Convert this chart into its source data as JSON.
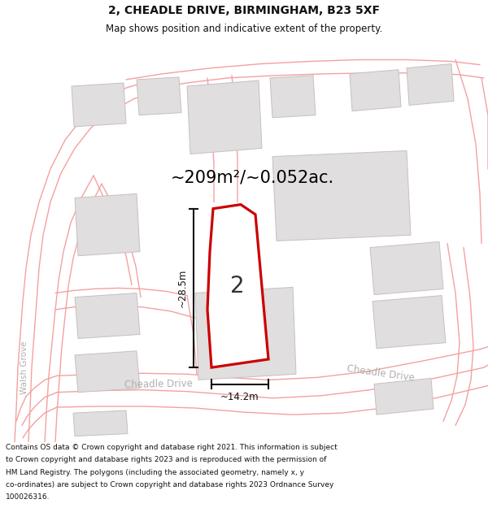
{
  "title": "2, CHEADLE DRIVE, BIRMINGHAM, B23 5XF",
  "subtitle": "Map shows position and indicative extent of the property.",
  "area_text": "~209m²/~0.052ac.",
  "number_label": "2",
  "dim_height": "~28.5m",
  "dim_width": "~14.2m",
  "street_label_bottom": "Cheadle Drive",
  "street_label_right": "Cheadle Drive",
  "street_label_left": "Walsh Grove",
  "footer_lines": [
    "Contains OS data © Crown copyright and database right 2021. This information is subject",
    "to Crown copyright and database rights 2023 and is reproduced with the permission of",
    "HM Land Registry. The polygons (including the associated geometry, namely x, y",
    "co-ordinates) are subject to Crown copyright and database rights 2023 Ordnance Survey",
    "100026316."
  ],
  "bg_color": "#ffffff",
  "map_bg": "#ffffff",
  "road_line_color": "#f5a0a0",
  "plot_edge_color": "#cc0000",
  "plot_fill": "#ffffff",
  "building_fill": "#e0dede",
  "building_edge": "#c8c0c0",
  "title_color": "#111111",
  "street_text_color": "#b0b0b0",
  "title_size": 10,
  "subtitle_size": 8.5,
  "area_text_size": 15,
  "number_label_size": 20,
  "street_label_size": 8.5,
  "footer_size": 6.5
}
